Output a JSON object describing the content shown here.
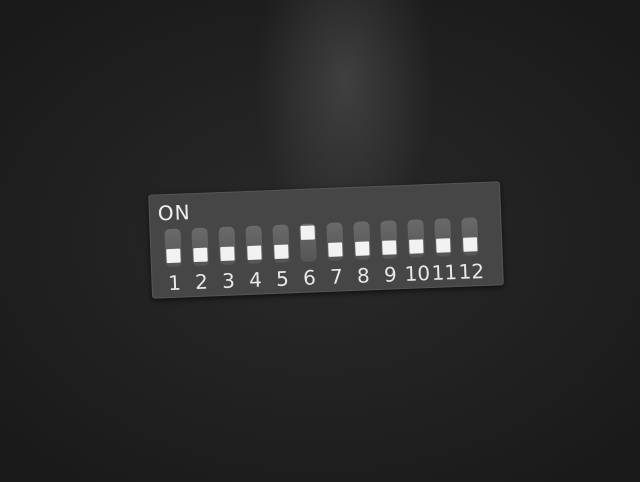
{
  "dip_switch": {
    "on_label": "ON",
    "switches": [
      {
        "number": "1",
        "state": "off"
      },
      {
        "number": "2",
        "state": "off"
      },
      {
        "number": "3",
        "state": "off"
      },
      {
        "number": "4",
        "state": "off"
      },
      {
        "number": "5",
        "state": "off"
      },
      {
        "number": "6",
        "state": "on"
      },
      {
        "number": "7",
        "state": "off"
      },
      {
        "number": "8",
        "state": "off"
      },
      {
        "number": "9",
        "state": "off"
      },
      {
        "number": "10",
        "state": "off"
      },
      {
        "number": "11",
        "state": "off"
      },
      {
        "number": "12",
        "state": "off"
      }
    ]
  }
}
